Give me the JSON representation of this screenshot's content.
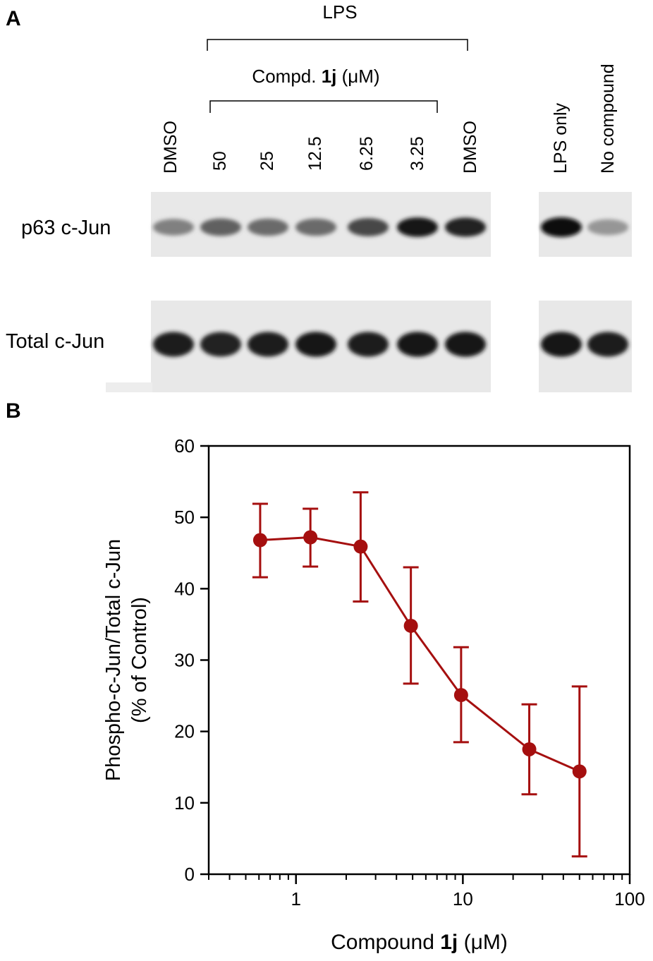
{
  "panel_a": {
    "label": "A",
    "treatment_label": "LPS",
    "compound_label": {
      "prefix": "Compd. ",
      "bold": "1j",
      "suffix": " (μM)"
    },
    "lanes_left": [
      "DMSO",
      "50",
      "25",
      "12.5",
      "6.25",
      "3.25",
      "DMSO"
    ],
    "lanes_right": [
      "LPS only",
      "No compound"
    ],
    "rows": [
      {
        "label": "p63 c-Jun",
        "band_intensity": [
          0.45,
          0.6,
          0.55,
          0.55,
          0.72,
          0.95,
          0.9
        ],
        "band_intensity_right": [
          1.0,
          0.35
        ]
      },
      {
        "label": "Total c-Jun",
        "band_intensity": [
          0.92,
          0.9,
          0.92,
          0.95,
          0.92,
          0.95,
          0.95
        ],
        "band_intensity_right": [
          0.95,
          0.92
        ]
      }
    ]
  },
  "panel_b": {
    "label": "B"
  },
  "chart_data": {
    "type": "line",
    "xscale": "log",
    "xlim": [
      0.3,
      100
    ],
    "ylim": [
      0,
      60
    ],
    "xticks": [
      1,
      10,
      100
    ],
    "yticks": [
      0,
      10,
      20,
      30,
      40,
      50,
      60
    ],
    "ylabel_line1": "Phospho-c-Jun/Total c-Jun",
    "ylabel_line2": "(% of Control)",
    "xlabel": {
      "prefix": "Compound ",
      "bold": "1j",
      "suffix": " (μM)"
    },
    "series": [
      {
        "color": "#a50f0f",
        "x": [
          0.61,
          1.22,
          2.44,
          4.88,
          9.76,
          25,
          50
        ],
        "y": [
          46.8,
          47.2,
          45.9,
          34.8,
          25.1,
          17.5,
          14.4
        ],
        "err_low": [
          41.6,
          43.1,
          38.2,
          26.7,
          18.5,
          11.2,
          2.5
        ],
        "err_high": [
          51.9,
          51.2,
          53.5,
          43.0,
          31.8,
          23.8,
          26.3
        ]
      }
    ]
  }
}
